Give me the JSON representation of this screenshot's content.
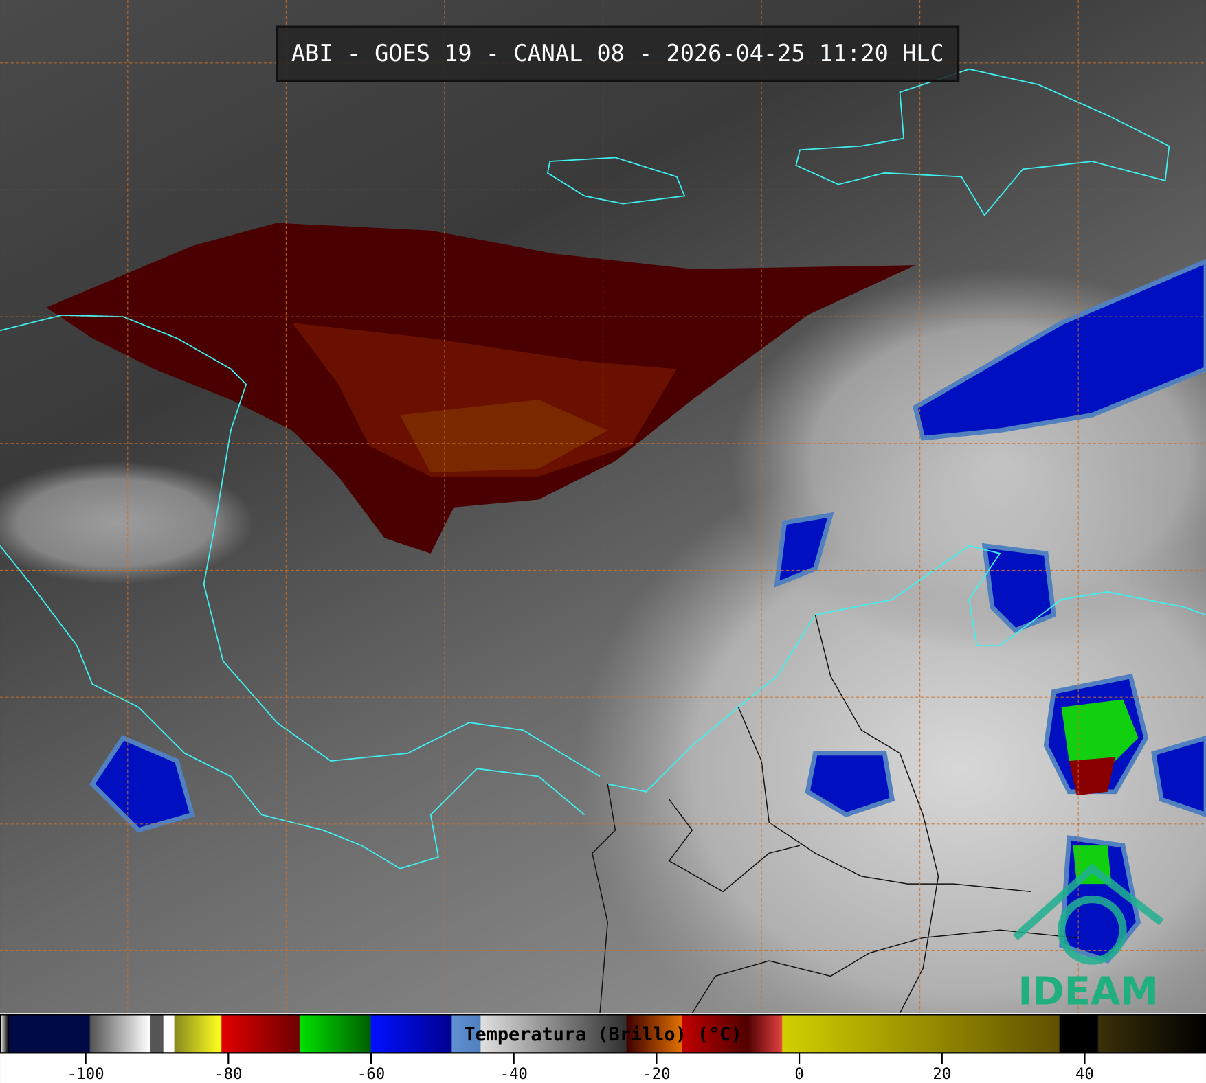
{
  "header": {
    "title": "ABI - GOES 19 - CANAL 08 - 2026-04-25 11:20 HLC"
  },
  "colorbar": {
    "label": "Temperatura (Brillo) (°C)",
    "lim": [
      -112,
      57
    ],
    "ticks": [
      -100,
      -80,
      -60,
      -40,
      -20,
      0,
      20,
      40
    ]
  },
  "logo": {
    "text": "IDEAM"
  }
}
